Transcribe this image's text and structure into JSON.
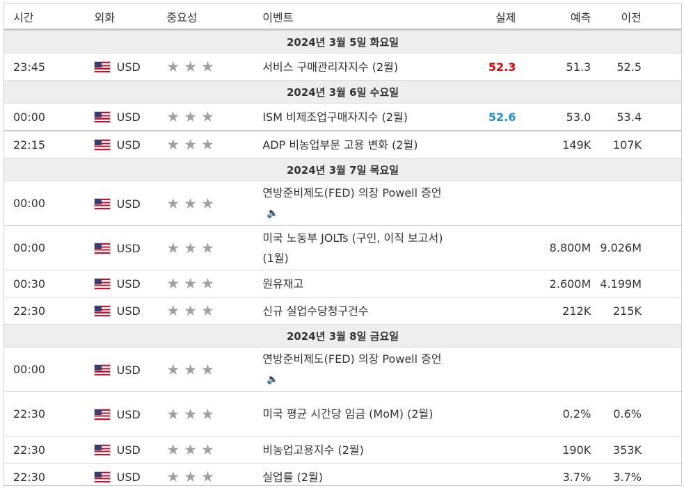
{
  "header": {
    "time": "시간",
    "currency": "외화",
    "importance": "중요성",
    "event": "이벤트",
    "actual": "실제",
    "forecast": "예측",
    "previous": "이전"
  },
  "colors": {
    "actual_worse": "#e00000",
    "actual_better": "#1e90d8",
    "star": "#a0a0a0"
  },
  "days": [
    {
      "label": "2024년 3월 5일 화요일",
      "events": [
        {
          "time": "23:45",
          "currency": "USD",
          "stars": "★★★",
          "event": "서비스 구매관리자지수 (2월)",
          "actual": "52.3",
          "actual_color": "red",
          "forecast": "51.3",
          "previous": "52.5"
        }
      ]
    },
    {
      "label": "2024년 3월 6일 수요일",
      "events": [
        {
          "time": "00:00",
          "currency": "USD",
          "stars": "★★★",
          "event": "ISM 비제조업구매자지수 (2월)",
          "actual": "52.6",
          "actual_color": "blue",
          "forecast": "53.0",
          "previous": "53.4"
        },
        {
          "time": "22:15",
          "currency": "USD",
          "stars": "★★★",
          "event": "ADP 비농업부문 고용 변화 (2월)",
          "actual": "",
          "forecast": "149K",
          "previous": "107K"
        }
      ]
    },
    {
      "label": "2024년 3월 7일 목요일",
      "events": [
        {
          "time": "00:00",
          "currency": "USD",
          "stars": "★★★",
          "event": "연방준비제도(FED) 의장 Powell 증언",
          "speech": true,
          "actual": "",
          "forecast": "",
          "previous": ""
        },
        {
          "time": "00:00",
          "currency": "USD",
          "stars": "★★★",
          "event": "미국 노동부 JOLTs (구인, 이직 보고서) (1월)",
          "actual": "",
          "forecast": "8.800M",
          "previous": "9.026M"
        },
        {
          "time": "00:30",
          "currency": "USD",
          "stars": "★★★",
          "event": "원유재고",
          "actual": "",
          "forecast": "2.600M",
          "previous": "4.199M"
        },
        {
          "time": "22:30",
          "currency": "USD",
          "stars": "★★★",
          "event": "신규 실업수당청구건수",
          "actual": "",
          "forecast": "212K",
          "previous": "215K"
        }
      ]
    },
    {
      "label": "2024년 3월 8일 금요일",
      "events": [
        {
          "time": "00:00",
          "currency": "USD",
          "stars": "★★★",
          "event": "연방준비제도(FED) 의장 Powell 증언",
          "speech": true,
          "actual": "",
          "forecast": "",
          "previous": ""
        },
        {
          "time": "22:30",
          "currency": "USD",
          "stars": "★★★",
          "event": "미국 평균 시간당 임금 (MoM) (2월)",
          "actual": "",
          "forecast": "0.2%",
          "previous": "0.6%"
        },
        {
          "time": "22:30",
          "currency": "USD",
          "stars": "★★★",
          "event": "비농업고용지수 (2월)",
          "actual": "",
          "forecast": "190K",
          "previous": "353K"
        },
        {
          "time": "22:30",
          "currency": "USD",
          "stars": "★★★",
          "event": "실업률 (2월)",
          "actual": "",
          "forecast": "3.7%",
          "previous": "3.7%"
        }
      ]
    }
  ]
}
